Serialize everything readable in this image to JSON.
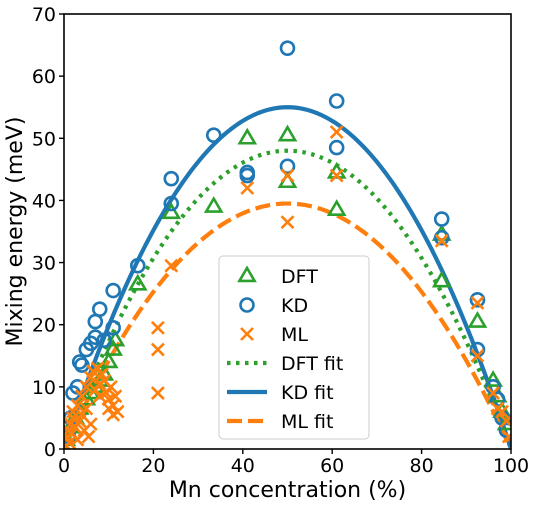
{
  "chart_data": {
    "type": "scatter",
    "xlabel": "Mn concentration (%)",
    "ylabel": "Mixing energy (meV)",
    "xlim": [
      0,
      100
    ],
    "ylim": [
      0,
      70
    ],
    "xticks": [
      "0",
      "20",
      "40",
      "60",
      "80",
      "100"
    ],
    "yticks": [
      "0",
      "10",
      "20",
      "30",
      "40",
      "50",
      "60",
      "70"
    ],
    "grid": false,
    "legend_position": "bottom-center",
    "colors": {
      "DFT": "#2ca02c",
      "KD": "#1f77b4",
      "ML": "#ff7f0e"
    },
    "series": [
      {
        "name": "DFT",
        "kind": "scatter",
        "marker": "triangle",
        "points": [
          [
            0.5,
            1.5
          ],
          [
            1.5,
            3.5
          ],
          [
            2.5,
            5
          ],
          [
            3.5,
            6.5
          ],
          [
            5,
            8
          ],
          [
            6,
            9
          ],
          [
            7,
            10
          ],
          [
            8,
            11
          ],
          [
            9,
            12
          ],
          [
            10,
            14
          ],
          [
            11,
            16
          ],
          [
            11.5,
            17.5
          ],
          [
            16.5,
            26.5
          ],
          [
            24,
            38
          ],
          [
            33.5,
            39
          ],
          [
            41,
            50
          ],
          [
            50,
            50.5
          ],
          [
            50,
            43
          ],
          [
            61,
            44.5
          ],
          [
            61,
            38.5
          ],
          [
            84.5,
            27
          ],
          [
            84.5,
            34.5
          ],
          [
            92.5,
            20.5
          ],
          [
            96,
            11
          ],
          [
            97,
            8.5
          ],
          [
            98,
            6
          ],
          [
            99,
            4
          ]
        ]
      },
      {
        "name": "KD",
        "kind": "scatter",
        "marker": "circle",
        "points": [
          [
            1,
            2
          ],
          [
            1.5,
            5
          ],
          [
            2,
            9
          ],
          [
            3,
            10
          ],
          [
            3.5,
            14
          ],
          [
            4,
            13.5
          ],
          [
            5,
            16
          ],
          [
            6,
            17
          ],
          [
            7,
            18
          ],
          [
            7,
            20.5
          ],
          [
            8,
            22.5
          ],
          [
            9,
            17.5
          ],
          [
            11,
            19.5
          ],
          [
            11,
            25.5
          ],
          [
            16.5,
            29.5
          ],
          [
            24,
            39.5
          ],
          [
            24,
            43.5
          ],
          [
            33.5,
            50.5
          ],
          [
            41,
            44.5
          ],
          [
            41,
            44
          ],
          [
            50,
            64.5
          ],
          [
            50,
            45.5
          ],
          [
            61,
            56
          ],
          [
            61,
            48.5
          ],
          [
            84.5,
            37
          ],
          [
            84.5,
            34
          ],
          [
            92.5,
            24
          ],
          [
            92.5,
            16
          ],
          [
            96,
            10
          ],
          [
            97,
            8
          ],
          [
            98,
            5
          ],
          [
            99,
            3
          ]
        ]
      },
      {
        "name": "ML",
        "kind": "scatter",
        "marker": "x",
        "points": [
          [
            0.5,
            0.5
          ],
          [
            0.7,
            2
          ],
          [
            1,
            3
          ],
          [
            1.2,
            1
          ],
          [
            1.5,
            4
          ],
          [
            1.8,
            2.5
          ],
          [
            2,
            5
          ],
          [
            2,
            6
          ],
          [
            2.5,
            3.5
          ],
          [
            3,
            1.5
          ],
          [
            3,
            7
          ],
          [
            3.5,
            4.5
          ],
          [
            4,
            8.5
          ],
          [
            4,
            5.5
          ],
          [
            4.5,
            3
          ],
          [
            5,
            6.5
          ],
          [
            5,
            10
          ],
          [
            5.5,
            2
          ],
          [
            6,
            11.5
          ],
          [
            6,
            4
          ],
          [
            6.5,
            12.5
          ],
          [
            7,
            9.5
          ],
          [
            7.5,
            13
          ],
          [
            8,
            8.5
          ],
          [
            8,
            10.5
          ],
          [
            8.5,
            12
          ],
          [
            9,
            11
          ],
          [
            9.5,
            9
          ],
          [
            10,
            6.5
          ],
          [
            10,
            8
          ],
          [
            10.5,
            10
          ],
          [
            11,
            7
          ],
          [
            11,
            5.5
          ],
          [
            11.5,
            8.5
          ],
          [
            12,
            6
          ],
          [
            21,
            19.5
          ],
          [
            21,
            16
          ],
          [
            21,
            9
          ],
          [
            24,
            29.5
          ],
          [
            41,
            42
          ],
          [
            50,
            44
          ],
          [
            50,
            36.5
          ],
          [
            61,
            51
          ],
          [
            61,
            44
          ],
          [
            84.5,
            33.5
          ],
          [
            92.5,
            23.5
          ],
          [
            92.5,
            15
          ],
          [
            96,
            9
          ],
          [
            97,
            6.5
          ],
          [
            98,
            6
          ],
          [
            99,
            4.5
          ],
          [
            99.5,
            2
          ]
        ]
      },
      {
        "name": "DFT fit",
        "kind": "fit",
        "style": "dotted",
        "peak": 48
      },
      {
        "name": "KD fit",
        "kind": "fit",
        "style": "solid",
        "peak": 55
      },
      {
        "name": "ML fit",
        "kind": "fit",
        "style": "dashed",
        "peak": 39.5
      }
    ]
  }
}
